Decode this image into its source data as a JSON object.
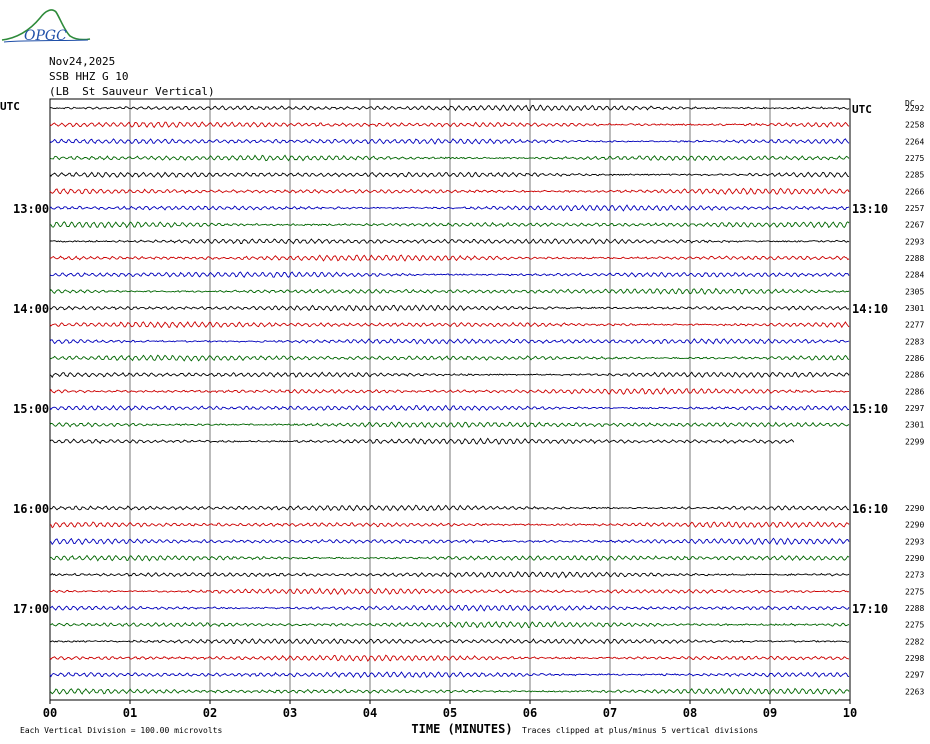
{
  "header": {
    "logo_text": "OPGC",
    "date": "Nov24,2025",
    "station": "SSB HHZ G 10",
    "location": "(LB  St Sauveur Vertical)"
  },
  "chart_data": {
    "type": "line",
    "title": "",
    "xlabel": "TIME (MINUTES)",
    "x_ticks": [
      "00",
      "01",
      "02",
      "03",
      "04",
      "05",
      "06",
      "07",
      "08",
      "09",
      "10"
    ],
    "xlim": [
      0,
      10
    ],
    "left_axis_title": "UTC",
    "right_axis_title": "UTC",
    "dc_label": "DC",
    "left_time_labels": [
      {
        "row": 6,
        "text": "13:00"
      },
      {
        "row": 12,
        "text": "14:00"
      },
      {
        "row": 18,
        "text": "15:00"
      },
      {
        "row": 24,
        "text": "16:00"
      },
      {
        "row": 30,
        "text": "17:00"
      }
    ],
    "right_time_labels": [
      {
        "row": 0,
        "text": "UTC"
      },
      {
        "row": 6,
        "text": "13:10"
      },
      {
        "row": 12,
        "text": "14:10"
      },
      {
        "row": 18,
        "text": "15:10"
      },
      {
        "row": 24,
        "text": "16:10"
      },
      {
        "row": 30,
        "text": "17:10"
      }
    ],
    "trace_colors": [
      "#000000",
      "#cc0000",
      "#0000bb",
      "#006600"
    ],
    "traces": [
      {
        "row": 0,
        "dc": "2292",
        "end_minute": 10
      },
      {
        "row": 1,
        "dc": "2258",
        "end_minute": 10
      },
      {
        "row": 2,
        "dc": "2264",
        "end_minute": 10
      },
      {
        "row": 3,
        "dc": "2275",
        "end_minute": 10
      },
      {
        "row": 4,
        "dc": "2285",
        "end_minute": 10
      },
      {
        "row": 5,
        "dc": "2266",
        "end_minute": 10
      },
      {
        "row": 6,
        "dc": "2257",
        "end_minute": 10
      },
      {
        "row": 7,
        "dc": "2267",
        "end_minute": 10
      },
      {
        "row": 8,
        "dc": "2293",
        "end_minute": 10
      },
      {
        "row": 9,
        "dc": "2288",
        "end_minute": 10
      },
      {
        "row": 10,
        "dc": "2284",
        "end_minute": 10
      },
      {
        "row": 11,
        "dc": "2305",
        "end_minute": 10
      },
      {
        "row": 12,
        "dc": "2301",
        "end_minute": 10
      },
      {
        "row": 13,
        "dc": "2277",
        "end_minute": 10
      },
      {
        "row": 14,
        "dc": "2283",
        "end_minute": 10
      },
      {
        "row": 15,
        "dc": "2286",
        "end_minute": 10
      },
      {
        "row": 16,
        "dc": "2286",
        "end_minute": 10
      },
      {
        "row": 17,
        "dc": "2286",
        "end_minute": 10
      },
      {
        "row": 18,
        "dc": "2297",
        "end_minute": 10
      },
      {
        "row": 19,
        "dc": "2301",
        "end_minute": 10
      },
      {
        "row": 20,
        "dc": "2299",
        "end_minute": 9.3
      },
      {
        "row": 24,
        "dc": "2290",
        "end_minute": 10
      },
      {
        "row": 25,
        "dc": "2290",
        "end_minute": 10
      },
      {
        "row": 26,
        "dc": "2293",
        "end_minute": 10
      },
      {
        "row": 27,
        "dc": "2290",
        "end_minute": 10
      },
      {
        "row": 28,
        "dc": "2273",
        "end_minute": 10
      },
      {
        "row": 29,
        "dc": "2275",
        "end_minute": 10
      },
      {
        "row": 30,
        "dc": "2288",
        "end_minute": 10
      },
      {
        "row": 31,
        "dc": "2275",
        "end_minute": 10
      },
      {
        "row": 32,
        "dc": "2282",
        "end_minute": 10
      },
      {
        "row": 33,
        "dc": "2298",
        "end_minute": 10
      },
      {
        "row": 34,
        "dc": "2297",
        "end_minute": 10
      },
      {
        "row": 35,
        "dc": "2263",
        "end_minute": 10
      }
    ],
    "footer": {
      "left_note": "Each Vertical Division =  100.00 microvolts",
      "right_note": "Traces clipped at plus/minus 5 vertical divisions"
    }
  }
}
